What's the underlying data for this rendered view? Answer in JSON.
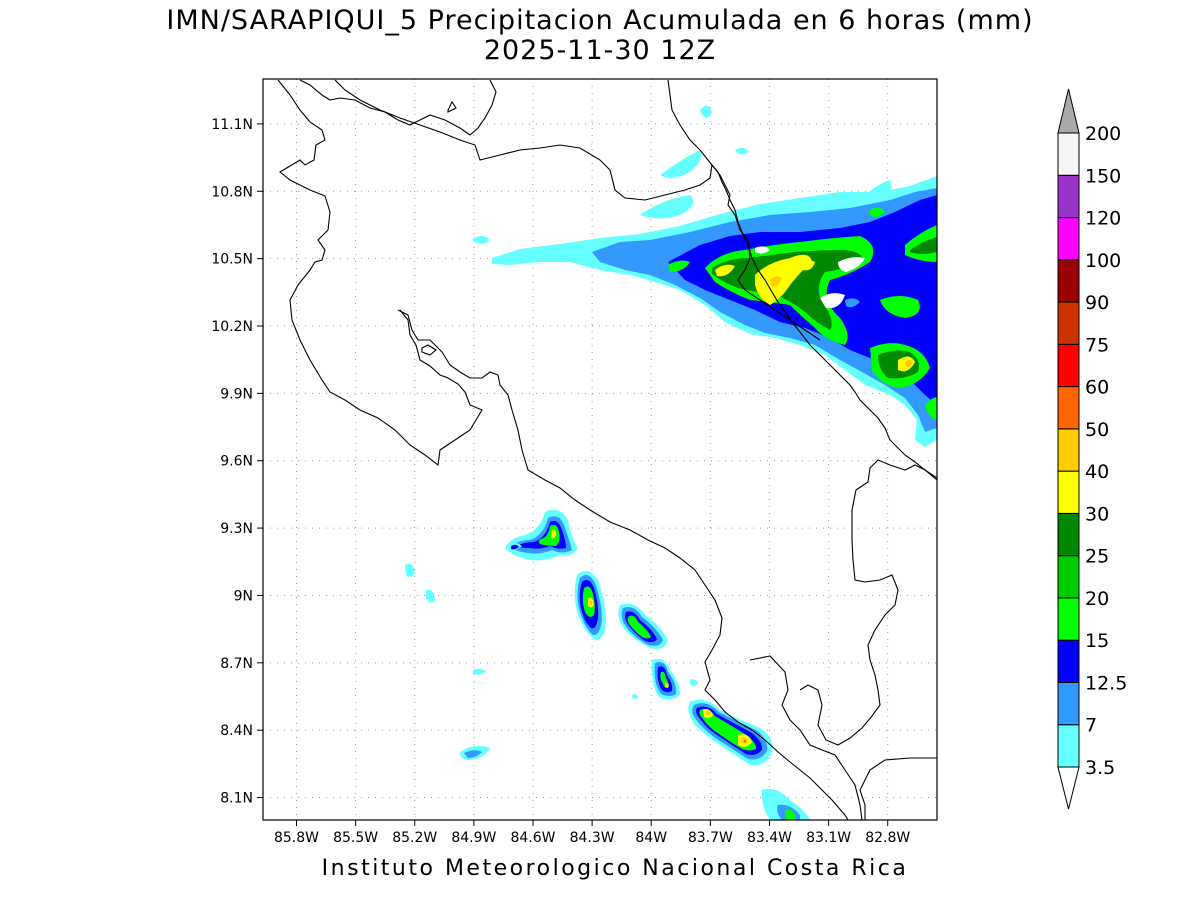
{
  "title": {
    "line1": "IMN/SARAPIQUI_5 Precipitacion Acumulada en 6 horas (mm)",
    "line2": "2025-11-30 12Z"
  },
  "footer": "Instituto Meteorologico Nacional Costa Rica",
  "map": {
    "lon_range": [
      -85.97,
      -82.55
    ],
    "lat_range": [
      8.0,
      11.3
    ],
    "lat_ticks": [
      "11.1N",
      "10.8N",
      "10.5N",
      "10.2N",
      "9.9N",
      "9.6N",
      "9.3N",
      "9N",
      "8.7N",
      "8.4N",
      "8.1N"
    ],
    "lat_values": [
      11.1,
      10.8,
      10.5,
      10.2,
      9.9,
      9.6,
      9.3,
      9.0,
      8.7,
      8.4,
      8.1
    ],
    "lon_ticks": [
      "85.8W",
      "85.5W",
      "85.2W",
      "84.9W",
      "84.6W",
      "84.3W",
      "84W",
      "83.7W",
      "83.4W",
      "83.1W",
      "82.8W"
    ],
    "lon_values": [
      -85.8,
      -85.5,
      -85.2,
      -84.9,
      -84.6,
      -84.3,
      -84.0,
      -83.7,
      -83.4,
      -83.1,
      -82.8
    ],
    "grid": "dotted"
  },
  "colorbar": {
    "labels": [
      "3.5",
      "7",
      "12.5",
      "15",
      "20",
      "25",
      "30",
      "40",
      "50",
      "60",
      "75",
      "90",
      "100",
      "120",
      "150",
      "200"
    ],
    "colors": [
      "#66ffff",
      "#3399ff",
      "#0000ff",
      "#00ff00",
      "#00cc00",
      "#008800",
      "#ffff00",
      "#ffcc00",
      "#ff6600",
      "#ff0000",
      "#cc3300",
      "#990000",
      "#ff00ff",
      "#9933cc",
      "#f5f5f5"
    ],
    "over_color": "#aaaaaa",
    "under_color": "#ffffff"
  },
  "colors": {
    "c1": "#66ffff",
    "c2": "#3399ff",
    "c3": "#0000ff",
    "c4": "#00ff00",
    "c5": "#00cc00",
    "c6": "#008800",
    "c7": "#ffff00",
    "c8": "#ffcc00",
    "c9": "#ff6600",
    "c10": "#ff0000"
  }
}
